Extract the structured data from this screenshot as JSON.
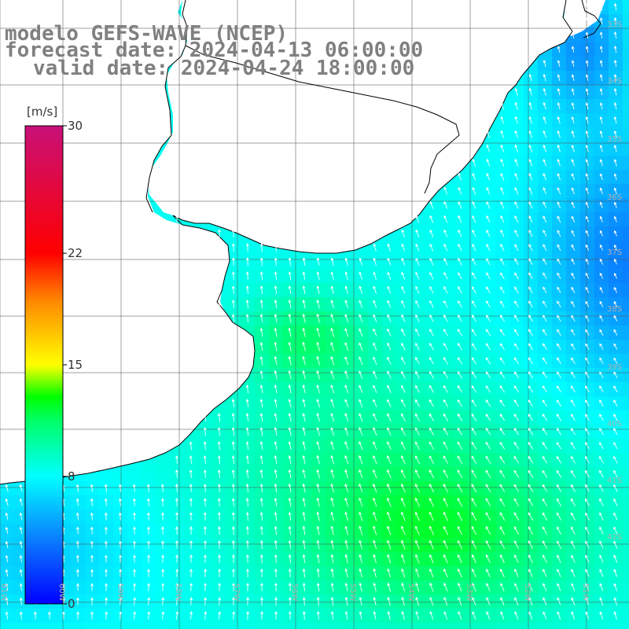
{
  "title": {
    "line1": "modelo GEFS-WAVE (NCEP)",
    "line2": "forecast date: 2024-04-13 06:00:00",
    "line3": "valid date: 2024-04-24 18:00:00"
  },
  "colorbar": {
    "unit": "[m/s]",
    "ticks": [
      "30",
      "22",
      "15",
      "8",
      "0"
    ],
    "tick_values": [
      30,
      22,
      15,
      8,
      0
    ],
    "stops": [
      {
        "value": 0,
        "color": "#0000ff"
      },
      {
        "value": 4,
        "color": "#0a7cff"
      },
      {
        "value": 8,
        "color": "#00ffff"
      },
      {
        "value": 11.5,
        "color": "#00ff66"
      },
      {
        "value": 13,
        "color": "#00ff00"
      },
      {
        "value": 15,
        "color": "#ffff00"
      },
      {
        "value": 19,
        "color": "#ff8800"
      },
      {
        "value": 22,
        "color": "#ff0000"
      },
      {
        "value": 30,
        "color": "#c81078"
      }
    ]
  },
  "axes": {
    "lon_labels": [
      "61W",
      "60W",
      "59W",
      "58W",
      "57W",
      "56W",
      "55W",
      "54W",
      "53W",
      "52W",
      "51W"
    ],
    "lat_labels": [
      "33S",
      "34S",
      "35S",
      "36S",
      "37S",
      "38S",
      "39S",
      "40S",
      "41S",
      "42S"
    ],
    "lat_label_values": [
      33,
      34,
      35,
      36,
      37,
      38,
      39,
      40,
      41,
      42
    ]
  },
  "colors": {
    "land": "#ffffff",
    "coast": "#000000",
    "grid": "#555555",
    "arrow": "#ffffff",
    "title": "#808080"
  },
  "field": {
    "variable": "wind speed",
    "unit": "m/s",
    "arrow_direction": "from south-southwest toward north-northeast"
  }
}
